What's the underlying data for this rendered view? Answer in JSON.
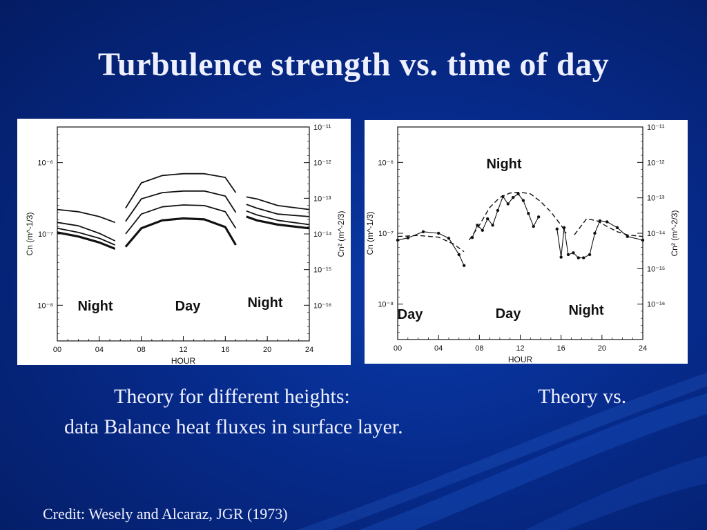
{
  "slide": {
    "title": "Turbulence strength vs. time of day",
    "caption_left_line1": "Theory for different heights:",
    "caption_right_line1": "Theory vs.",
    "caption_line2": "data Balance heat fluxes in surface layer.",
    "credit": "Credit: Wesely and Alcaraz, JGR (1973)"
  },
  "colors": {
    "background": "#062a8a",
    "text": "#eef0ff",
    "plot_ink": "#111111"
  },
  "chart_data": [
    {
      "type": "line",
      "panel": "theory",
      "xlabel": "HOUR",
      "ylabel_left": "Cn (m^-1/3)",
      "ylabel_right": "Cn² (m^-2/3)",
      "xlim": [
        0,
        24
      ],
      "x_ticks": [
        "00",
        "04",
        "08",
        "12",
        "16",
        "20",
        "24"
      ],
      "y_ticks_left": [
        "10⁻⁶",
        "10⁻⁷",
        "10⁻⁸"
      ],
      "y_ticks_right": [
        "10⁻¹¹",
        "10⁻¹²",
        "10⁻¹³",
        "10⁻¹⁴",
        "10⁻¹⁵",
        "10⁻¹⁶"
      ],
      "period_labels": [
        "Night",
        "Day",
        "Night"
      ],
      "series": [
        {
          "segments": [
            [
              [
                0,
                2.2e-07
              ],
              [
                2,
                2.05e-07
              ],
              [
                4,
                1.75e-07
              ],
              [
                5.5,
                1.45e-07
              ]
            ],
            [
              [
                6.5,
                2.3e-07
              ],
              [
                8,
                5.2e-07
              ],
              [
                10,
                6.6e-07
              ],
              [
                12,
                7e-07
              ],
              [
                14,
                7e-07
              ],
              [
                16,
                6.2e-07
              ],
              [
                17,
                3.8e-07
              ]
            ],
            [
              [
                18,
                3.3e-07
              ],
              [
                19,
                3.1e-07
              ],
              [
                21,
                2.5e-07
              ],
              [
                24,
                2.2e-07
              ]
            ]
          ]
        },
        {
          "segments": [
            [
              [
                0,
                1.45e-07
              ],
              [
                2,
                1.3e-07
              ],
              [
                4,
                1.02e-07
              ],
              [
                5.5,
                8e-08
              ]
            ],
            [
              [
                6.5,
                1.5e-07
              ],
              [
                8,
                3.1e-07
              ],
              [
                10,
                3.8e-07
              ],
              [
                12,
                4e-07
              ],
              [
                14,
                4e-07
              ],
              [
                16,
                3.4e-07
              ],
              [
                17,
                2e-07
              ]
            ],
            [
              [
                18,
                2.6e-07
              ],
              [
                19,
                2.3e-07
              ],
              [
                21,
                1.9e-07
              ],
              [
                24,
                1.75e-07
              ]
            ]
          ]
        },
        {
          "segments": [
            [
              [
                0,
                1.2e-07
              ],
              [
                2,
                1.05e-07
              ],
              [
                4,
                8.7e-08
              ],
              [
                5.5,
                7e-08
              ]
            ],
            [
              [
                6.5,
                1e-07
              ],
              [
                8,
                1.9e-07
              ],
              [
                10,
                2.4e-07
              ],
              [
                12,
                2.55e-07
              ],
              [
                14,
                2.5e-07
              ],
              [
                16,
                2.05e-07
              ],
              [
                17,
                1.2e-07
              ]
            ],
            [
              [
                18,
                2.1e-07
              ],
              [
                19,
                1.85e-07
              ],
              [
                21,
                1.55e-07
              ],
              [
                24,
                1.35e-07
              ]
            ]
          ]
        },
        {
          "segments": [
            [
              [
                0,
                1.05e-07
              ],
              [
                2,
                9.2e-08
              ],
              [
                4,
                7.6e-08
              ],
              [
                5.5,
                6.2e-08
              ]
            ],
            [
              [
                6.5,
                6.6e-08
              ],
              [
                8,
                1.2e-07
              ],
              [
                10,
                1.55e-07
              ],
              [
                12,
                1.65e-07
              ],
              [
                14,
                1.6e-07
              ],
              [
                16,
                1.25e-07
              ],
              [
                17,
                7e-08
              ]
            ],
            [
              [
                18,
                1.75e-07
              ],
              [
                19,
                1.55e-07
              ],
              [
                21,
                1.35e-07
              ],
              [
                24,
                1.2e-07
              ]
            ]
          ]
        }
      ]
    },
    {
      "type": "line",
      "panel": "theory-vs-data",
      "xlabel": "HOUR",
      "ylabel_left": "Cn (m^-1/3)",
      "ylabel_right": "Cn² (m^-2/3)",
      "xlim": [
        0,
        24
      ],
      "x_ticks": [
        "00",
        "04",
        "08",
        "12",
        "16",
        "20",
        "24"
      ],
      "y_ticks_left": [
        "10⁻⁶",
        "10⁻⁷",
        "10⁻⁸"
      ],
      "y_ticks_right": [
        "10⁻¹¹",
        "10⁻¹²",
        "10⁻¹³",
        "10⁻¹⁴",
        "10⁻¹⁵",
        "10⁻¹⁶"
      ],
      "period_labels": [
        "Night",
        "Day",
        "Night",
        "Day"
      ],
      "series": [
        {
          "style": "data",
          "segments": [
            [
              [
                0,
                8e-08
              ],
              [
                1,
                8.6e-08
              ],
              [
                2.5,
                1.05e-07
              ],
              [
                4,
                1e-07
              ],
              [
                5,
                8.5e-08
              ],
              [
                6,
                5e-08
              ],
              [
                6.5,
                3.5e-08
              ]
            ],
            [
              [
                7.3,
                8.7e-08
              ],
              [
                7.8,
                1.3e-07
              ],
              [
                8.3,
                1.1e-07
              ],
              [
                8.8,
                1.6e-07
              ],
              [
                9.3,
                1.3e-07
              ],
              [
                9.8,
                2.1e-07
              ],
              [
                10.3,
                3.3e-07
              ],
              [
                10.8,
                2.6e-07
              ],
              [
                11.3,
                3.2e-07
              ],
              [
                11.8,
                3.6e-07
              ],
              [
                12.3,
                2.9e-07
              ],
              [
                12.8,
                1.9e-07
              ],
              [
                13.3,
                1.25e-07
              ],
              [
                13.8,
                1.7e-07
              ]
            ],
            [
              [
                15.6,
                1.15e-07
              ],
              [
                16.0,
                4.6e-08
              ],
              [
                16.3,
                1.2e-07
              ],
              [
                16.7,
                5e-08
              ],
              [
                17.2,
                5.3e-08
              ],
              [
                17.7,
                4.5e-08
              ],
              [
                18.2,
                4.5e-08
              ],
              [
                18.8,
                5e-08
              ],
              [
                19.3,
                1e-07
              ],
              [
                19.8,
                1.5e-07
              ],
              [
                20.5,
                1.45e-07
              ],
              [
                21.5,
                1.2e-07
              ],
              [
                22.5,
                9e-08
              ],
              [
                24,
                8e-08
              ]
            ]
          ]
        },
        {
          "style": "theory-dashed",
          "segments": [
            [
              [
                0,
                9e-08
              ],
              [
                2,
                9.3e-08
              ],
              [
                4,
                8.8e-08
              ],
              [
                5.5,
                7e-08
              ],
              [
                6.5,
                5.5e-08
              ]
            ],
            [
              [
                7,
                8e-08
              ],
              [
                8,
                1.3e-07
              ],
              [
                9,
                2.3e-07
              ],
              [
                10,
                3.2e-07
              ],
              [
                11,
                3.7e-07
              ],
              [
                12,
                3.8e-07
              ],
              [
                13,
                3.6e-07
              ],
              [
                14,
                2.8e-07
              ],
              [
                15,
                2e-07
              ],
              [
                16,
                1.3e-07
              ],
              [
                16.5,
                1e-07
              ]
            ],
            [
              [
                17.3,
                9.5e-08
              ],
              [
                18.5,
                1.6e-07
              ],
              [
                19.5,
                1.5e-07
              ],
              [
                20.5,
                1.25e-07
              ],
              [
                21.5,
                1.05e-07
              ],
              [
                22.5,
                9.5e-08
              ],
              [
                24,
                9e-08
              ]
            ]
          ]
        }
      ]
    }
  ]
}
